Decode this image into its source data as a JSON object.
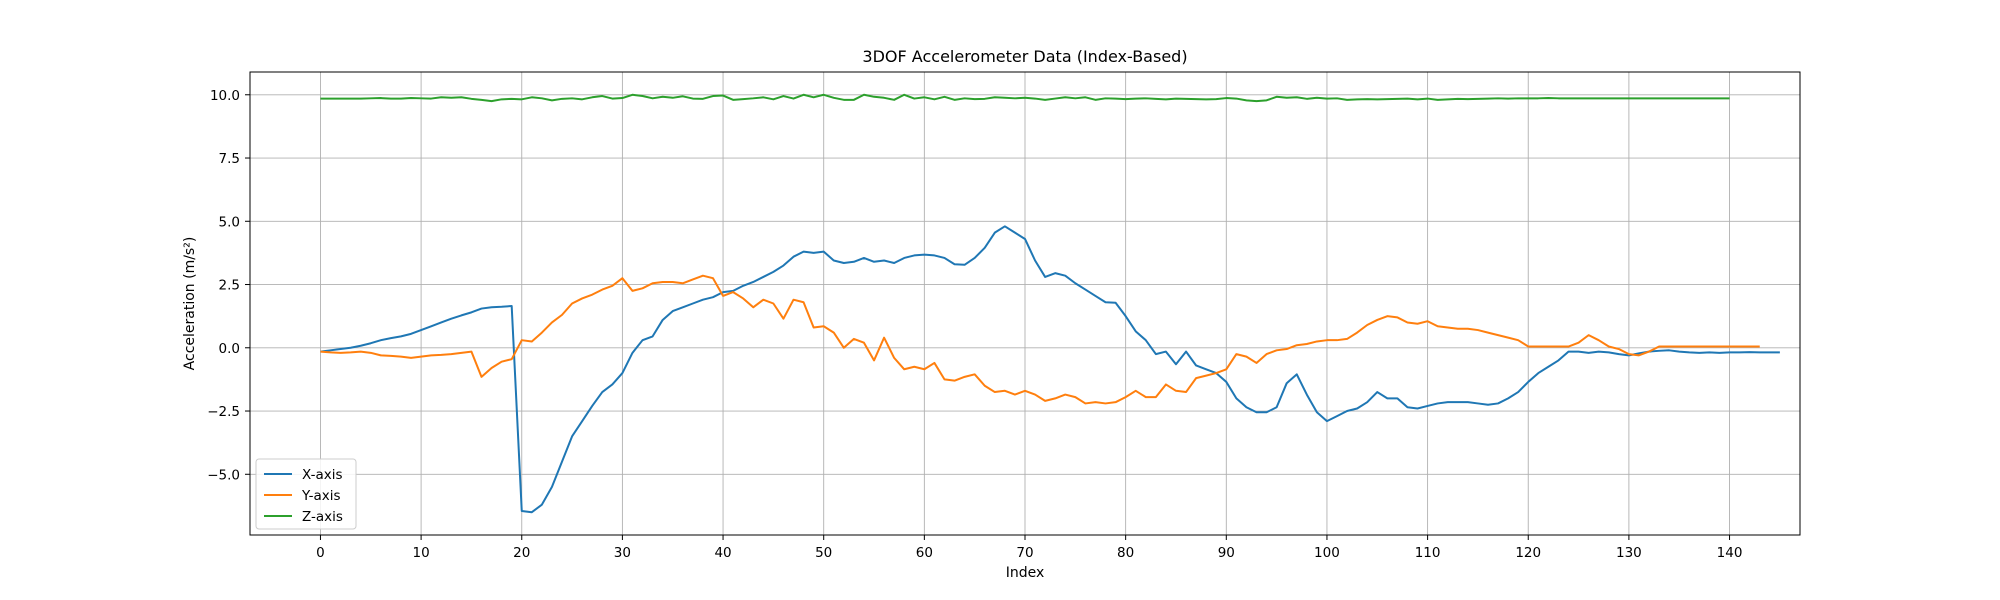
{
  "chart_data": {
    "type": "line",
    "title": "3DOF Accelerometer Data (Index-Based)",
    "xlabel": "Index",
    "ylabel": "Acceleration (m/s²)",
    "xlim": [
      -7,
      147
    ],
    "ylim": [
      -7.4,
      10.9
    ],
    "xticks": [
      0,
      10,
      20,
      30,
      40,
      50,
      60,
      70,
      80,
      90,
      100,
      110,
      120,
      130,
      140
    ],
    "xtick_labels": [
      "0",
      "10",
      "20",
      "30",
      "40",
      "50",
      "60",
      "70",
      "80",
      "90",
      "100",
      "110",
      "120",
      "130",
      "140"
    ],
    "yticks": [
      -5.0,
      -2.5,
      0.0,
      2.5,
      5.0,
      7.5,
      10.0
    ],
    "ytick_labels": [
      "−5.0",
      "−2.5",
      "0.0",
      "2.5",
      "5.0",
      "7.5",
      "10.0"
    ],
    "grid": true,
    "legend_position": "lower-left",
    "series": [
      {
        "name": "X-axis",
        "color": "#1f77b4",
        "values": [
          -0.15,
          -0.1,
          -0.05,
          0.0,
          0.08,
          0.18,
          0.3,
          0.38,
          0.45,
          0.55,
          0.7,
          0.85,
          1.0,
          1.15,
          1.28,
          1.4,
          1.55,
          1.6,
          1.62,
          1.65,
          -6.45,
          -6.5,
          -6.2,
          -5.5,
          -4.5,
          -3.5,
          -2.9,
          -2.3,
          -1.75,
          -1.45,
          -1.0,
          -0.2,
          0.3,
          0.45,
          1.1,
          1.45,
          1.6,
          1.75,
          1.9,
          2.0,
          2.2,
          2.25,
          2.45,
          2.6,
          2.8,
          3.0,
          3.25,
          3.6,
          3.8,
          3.75,
          3.8,
          3.45,
          3.35,
          3.4,
          3.55,
          3.4,
          3.45,
          3.35,
          3.55,
          3.65,
          3.68,
          3.65,
          3.55,
          3.3,
          3.28,
          3.55,
          3.95,
          4.55,
          4.8,
          4.55,
          4.3,
          3.45,
          2.8,
          2.95,
          2.85,
          2.55,
          2.3,
          2.05,
          1.8,
          1.78,
          1.25,
          0.65,
          0.3,
          -0.25,
          -0.15,
          -0.65,
          -0.15,
          -0.7,
          -0.85,
          -1.0,
          -1.35,
          -2.0,
          -2.35,
          -2.55,
          -2.55,
          -2.35,
          -1.4,
          -1.05,
          -1.85,
          -2.55,
          -2.9,
          -2.7,
          -2.5,
          -2.4,
          -2.15,
          -1.75,
          -2.0,
          -2.0,
          -2.35,
          -2.4,
          -2.3,
          -2.2,
          -2.15,
          -2.15,
          -2.15,
          -2.2,
          -2.25,
          -2.2,
          -2.0,
          -1.75,
          -1.35,
          -1.0,
          -0.75,
          -0.5,
          -0.15,
          -0.15,
          -0.2,
          -0.15,
          -0.18,
          -0.25,
          -0.3,
          -0.22,
          -0.15,
          -0.12,
          -0.1,
          -0.15,
          -0.18,
          -0.2,
          -0.18,
          -0.2,
          -0.18,
          -0.18,
          -0.17,
          -0.18,
          -0.18,
          -0.18
        ]
      },
      {
        "name": "Y-axis",
        "color": "#ff7f0e",
        "values": [
          -0.15,
          -0.18,
          -0.2,
          -0.18,
          -0.15,
          -0.2,
          -0.3,
          -0.32,
          -0.35,
          -0.4,
          -0.35,
          -0.3,
          -0.28,
          -0.25,
          -0.2,
          -0.15,
          -1.15,
          -0.8,
          -0.55,
          -0.45,
          0.3,
          0.25,
          0.6,
          1.0,
          1.3,
          1.75,
          1.95,
          2.1,
          2.3,
          2.45,
          2.75,
          2.25,
          2.35,
          2.55,
          2.6,
          2.6,
          2.55,
          2.7,
          2.85,
          2.75,
          2.05,
          2.2,
          1.95,
          1.6,
          1.9,
          1.75,
          1.15,
          1.9,
          1.8,
          0.8,
          0.85,
          0.6,
          0.0,
          0.35,
          0.2,
          -0.5,
          0.4,
          -0.4,
          -0.85,
          -0.75,
          -0.85,
          -0.6,
          -1.25,
          -1.3,
          -1.15,
          -1.05,
          -1.5,
          -1.75,
          -1.7,
          -1.85,
          -1.7,
          -1.85,
          -2.1,
          -2.0,
          -1.85,
          -1.95,
          -2.2,
          -2.15,
          -2.2,
          -2.15,
          -1.95,
          -1.7,
          -1.95,
          -1.95,
          -1.45,
          -1.7,
          -1.75,
          -1.2,
          -1.1,
          -1.0,
          -0.85,
          -0.25,
          -0.35,
          -0.6,
          -0.25,
          -0.1,
          -0.05,
          0.1,
          0.15,
          0.25,
          0.3,
          0.3,
          0.35,
          0.6,
          0.9,
          1.1,
          1.25,
          1.2,
          1.0,
          0.95,
          1.05,
          0.85,
          0.8,
          0.75,
          0.75,
          0.7,
          0.6,
          0.5,
          0.4,
          0.3,
          0.05,
          0.05,
          0.05,
          0.05,
          0.05,
          0.2,
          0.5,
          0.3,
          0.05,
          -0.05,
          -0.25,
          -0.3,
          -0.15,
          0.05,
          0.05,
          0.05,
          0.05,
          0.05,
          0.05,
          0.05,
          0.05,
          0.05,
          0.05,
          0.05
        ]
      },
      {
        "name": "Z-axis",
        "color": "#2ca02c",
        "values": [
          9.85,
          9.85,
          9.85,
          9.85,
          9.85,
          9.86,
          9.87,
          9.85,
          9.85,
          9.87,
          9.86,
          9.85,
          9.9,
          9.88,
          9.9,
          9.84,
          9.8,
          9.75,
          9.82,
          9.84,
          9.82,
          9.9,
          9.86,
          9.78,
          9.84,
          9.86,
          9.82,
          9.9,
          9.95,
          9.85,
          9.87,
          10.0,
          9.95,
          9.86,
          9.92,
          9.88,
          9.94,
          9.85,
          9.84,
          9.95,
          9.97,
          9.8,
          9.83,
          9.86,
          9.9,
          9.82,
          9.95,
          9.85,
          10.0,
          9.9,
          10.0,
          9.88,
          9.8,
          9.8,
          10.0,
          9.92,
          9.88,
          9.8,
          10.0,
          9.85,
          9.9,
          9.82,
          9.92,
          9.8,
          9.86,
          9.83,
          9.84,
          9.9,
          9.88,
          9.86,
          9.88,
          9.85,
          9.8,
          9.85,
          9.9,
          9.86,
          9.9,
          9.8,
          9.86,
          9.85,
          9.83,
          9.85,
          9.86,
          9.84,
          9.82,
          9.85,
          9.84,
          9.83,
          9.82,
          9.83,
          9.87,
          9.85,
          9.78,
          9.75,
          9.78,
          9.92,
          9.88,
          9.9,
          9.84,
          9.88,
          9.85,
          9.86,
          9.8,
          9.82,
          9.83,
          9.82,
          9.83,
          9.84,
          9.85,
          9.82,
          9.85,
          9.8,
          9.82,
          9.84,
          9.83,
          9.84,
          9.85,
          9.86,
          9.85,
          9.86,
          9.86,
          9.86,
          9.87,
          9.86,
          9.86,
          9.86,
          9.86,
          9.86,
          9.86,
          9.86,
          9.86,
          9.86,
          9.86,
          9.86,
          9.86,
          9.86,
          9.86,
          9.86,
          9.86,
          9.86,
          9.86
        ]
      }
    ]
  }
}
